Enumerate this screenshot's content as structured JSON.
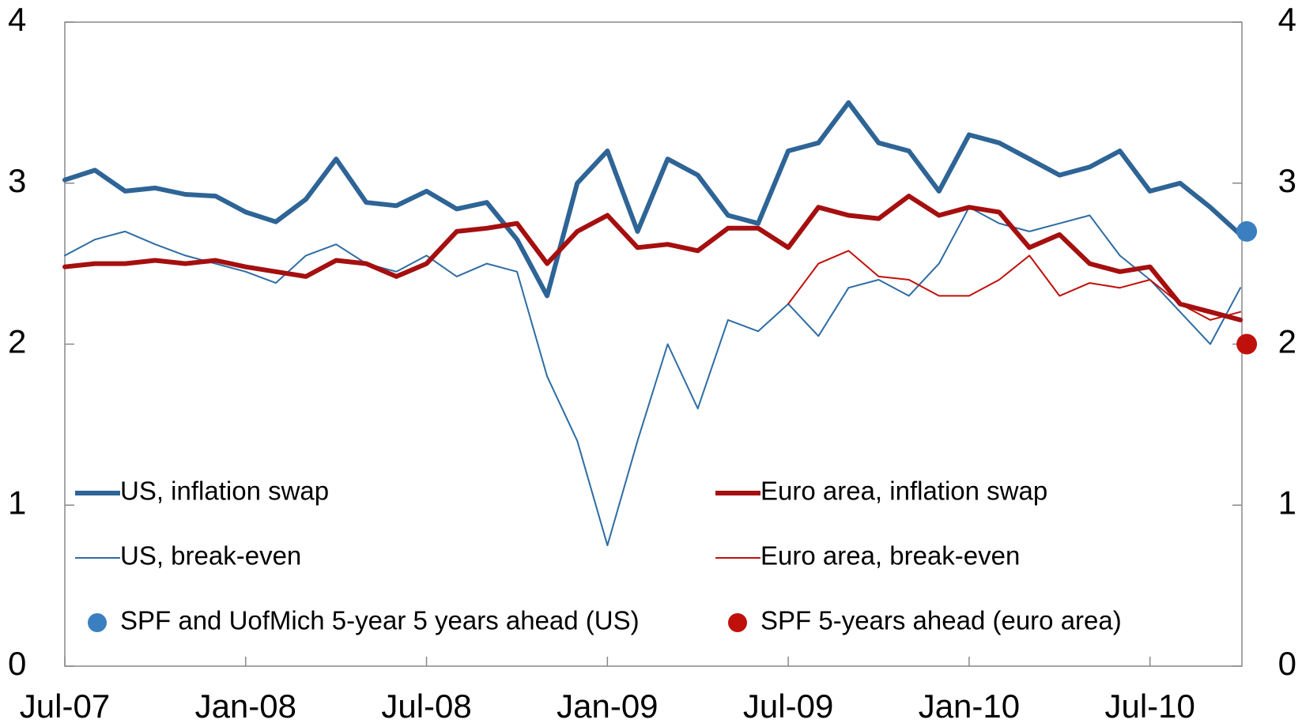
{
  "chart_data": {
    "type": "line",
    "x": [
      "Jul-07",
      "Aug-07",
      "Sep-07",
      "Oct-07",
      "Nov-07",
      "Dec-07",
      "Jan-08",
      "Feb-08",
      "Mar-08",
      "Apr-08",
      "May-08",
      "Jun-08",
      "Jul-08",
      "Aug-08",
      "Sep-08",
      "Oct-08",
      "Nov-08",
      "Dec-08",
      "Jan-09",
      "Feb-09",
      "Mar-09",
      "Apr-09",
      "May-09",
      "Jun-09",
      "Jul-09",
      "Aug-09",
      "Sep-09",
      "Oct-09",
      "Nov-09",
      "Dec-09",
      "Jan-10",
      "Feb-10",
      "Mar-10",
      "Apr-10",
      "May-10",
      "Jun-10",
      "Jul-10",
      "Aug-10",
      "Sep-10",
      "Oct-10"
    ],
    "xticks": [
      "Jul-07",
      "Jan-08",
      "Jul-08",
      "Jan-09",
      "Jul-09",
      "Jan-10",
      "Jul-10"
    ],
    "series": [
      {
        "name": "US, inflation swap",
        "color": "#2e6496",
        "style": "thick",
        "values": [
          3.02,
          3.08,
          2.95,
          2.97,
          2.93,
          2.92,
          2.82,
          2.76,
          2.9,
          3.15,
          2.88,
          2.86,
          2.95,
          2.84,
          2.88,
          2.65,
          2.3,
          3.0,
          3.2,
          2.7,
          3.15,
          3.05,
          2.8,
          2.75,
          3.2,
          3.25,
          3.5,
          3.25,
          3.2,
          2.95,
          3.3,
          3.25,
          3.15,
          3.05,
          3.1,
          3.2,
          2.95,
          3.0,
          2.85,
          2.68
        ]
      },
      {
        "name": "Euro area, inflation swap",
        "color": "#a50f0f",
        "style": "thick",
        "values": [
          2.48,
          2.5,
          2.5,
          2.52,
          2.5,
          2.52,
          2.48,
          2.45,
          2.42,
          2.52,
          2.5,
          2.42,
          2.5,
          2.7,
          2.72,
          2.75,
          2.5,
          2.7,
          2.8,
          2.6,
          2.62,
          2.58,
          2.72,
          2.72,
          2.6,
          2.85,
          2.8,
          2.78,
          2.92,
          2.8,
          2.85,
          2.82,
          2.6,
          2.68,
          2.5,
          2.45,
          2.48,
          2.25,
          2.2,
          2.15
        ]
      },
      {
        "name": "US, break-even",
        "color": "#2e6ca4",
        "style": "thin",
        "values": [
          2.55,
          2.65,
          2.7,
          2.62,
          2.55,
          2.5,
          2.45,
          2.38,
          2.55,
          2.62,
          2.5,
          2.45,
          2.55,
          2.42,
          2.5,
          2.45,
          1.8,
          1.4,
          0.75,
          1.4,
          2.0,
          1.6,
          2.15,
          2.08,
          2.25,
          2.05,
          2.35,
          2.4,
          2.3,
          2.5,
          2.85,
          2.75,
          2.7,
          2.75,
          2.8,
          2.55,
          2.4,
          2.2,
          2.0,
          2.35
        ]
      },
      {
        "name": "Euro area, break-even",
        "color": "#c0100c",
        "style": "thin",
        "values": [
          null,
          null,
          null,
          null,
          null,
          null,
          null,
          null,
          null,
          null,
          null,
          null,
          null,
          null,
          null,
          null,
          null,
          null,
          null,
          null,
          null,
          null,
          null,
          null,
          2.25,
          2.5,
          2.58,
          2.42,
          2.4,
          2.3,
          2.3,
          2.4,
          2.55,
          2.3,
          2.38,
          2.35,
          2.4,
          2.25,
          2.15,
          2.2
        ]
      },
      {
        "name": "SPF and UofMich 5-year 5 years ahead (US)",
        "color": "#3a7fc0",
        "style": "dot",
        "values": [
          null,
          null,
          null,
          null,
          null,
          null,
          null,
          null,
          null,
          null,
          null,
          null,
          null,
          null,
          null,
          null,
          null,
          null,
          null,
          null,
          null,
          null,
          null,
          null,
          null,
          null,
          null,
          null,
          null,
          null,
          null,
          null,
          null,
          null,
          null,
          null,
          null,
          null,
          null,
          2.7
        ]
      },
      {
        "name": "SPF 5-years ahead (euro area)",
        "color": "#c0100c",
        "style": "dot",
        "values": [
          null,
          null,
          null,
          null,
          null,
          null,
          null,
          null,
          null,
          null,
          null,
          null,
          null,
          null,
          null,
          null,
          null,
          null,
          null,
          null,
          null,
          null,
          null,
          null,
          null,
          null,
          null,
          null,
          null,
          null,
          null,
          null,
          null,
          null,
          null,
          null,
          null,
          null,
          null,
          2.0
        ]
      }
    ],
    "ylim": [
      0,
      4
    ],
    "yticks": [
      0,
      1,
      2,
      3,
      4
    ],
    "y2lim": [
      0,
      4
    ],
    "y2ticks": [
      0,
      1,
      2,
      3,
      4
    ]
  }
}
